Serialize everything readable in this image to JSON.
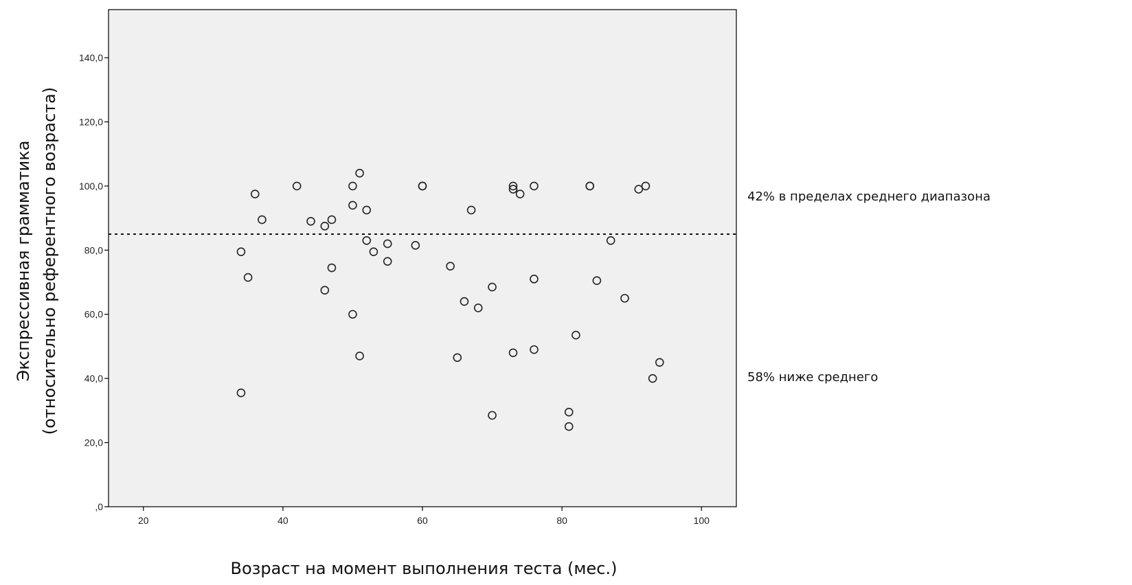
{
  "chart_data": {
    "type": "scatter",
    "title": "",
    "xlabel": "Возраст на момент выполнения теста (мес.)",
    "ylabel": [
      "Экспрессивная грамматика",
      "(относительно референтного возраста)"
    ],
    "xlim": [
      15,
      105
    ],
    "ylim": [
      0,
      155
    ],
    "x_ticks": [
      20,
      40,
      60,
      80,
      100
    ],
    "x_tick_labels": [
      "20",
      "40",
      "60",
      "80",
      "100"
    ],
    "y_ticks": [
      0,
      20,
      40,
      60,
      80,
      100,
      120,
      140
    ],
    "y_tick_labels": [
      ",0",
      "20,0",
      "40,0",
      "60,0",
      "80,0",
      "100,0",
      "120,0",
      "140,0"
    ],
    "grid": false,
    "plot_background": "#f0f0f0",
    "marker_color": "#222222",
    "reference_line": {
      "y": 85,
      "style": "dotted"
    },
    "annotations": [
      "42% в пределах среднего диапазона",
      "58% ниже среднего"
    ],
    "points": [
      [
        34,
        35.5
      ],
      [
        34,
        79.5
      ],
      [
        35,
        71.5
      ],
      [
        36,
        97.5
      ],
      [
        37,
        89.5
      ],
      [
        42,
        100
      ],
      [
        44,
        89
      ],
      [
        46,
        87.5
      ],
      [
        46,
        67.5
      ],
      [
        47,
        89.5
      ],
      [
        47,
        74.5
      ],
      [
        50,
        100
      ],
      [
        50,
        94
      ],
      [
        50,
        60
      ],
      [
        51,
        104
      ],
      [
        51,
        47
      ],
      [
        52,
        92.5
      ],
      [
        52,
        83
      ],
      [
        53,
        79.5
      ],
      [
        55,
        82
      ],
      [
        55,
        76.5
      ],
      [
        59,
        81.5
      ],
      [
        60,
        100
      ],
      [
        60,
        100
      ],
      [
        64,
        75
      ],
      [
        65,
        46.5
      ],
      [
        66,
        64
      ],
      [
        67,
        92.5
      ],
      [
        68,
        62
      ],
      [
        70,
        68.5
      ],
      [
        70,
        28.5
      ],
      [
        73,
        100
      ],
      [
        73,
        99
      ],
      [
        73,
        48
      ],
      [
        74,
        97.5
      ],
      [
        76,
        100
      ],
      [
        76,
        71
      ],
      [
        76,
        49
      ],
      [
        81,
        29.5
      ],
      [
        81,
        25
      ],
      [
        82,
        53.5
      ],
      [
        84,
        100
      ],
      [
        84,
        100
      ],
      [
        85,
        70.5
      ],
      [
        87,
        83
      ],
      [
        89,
        65
      ],
      [
        91,
        99
      ],
      [
        92,
        100
      ],
      [
        93,
        40
      ],
      [
        94,
        45
      ]
    ]
  }
}
